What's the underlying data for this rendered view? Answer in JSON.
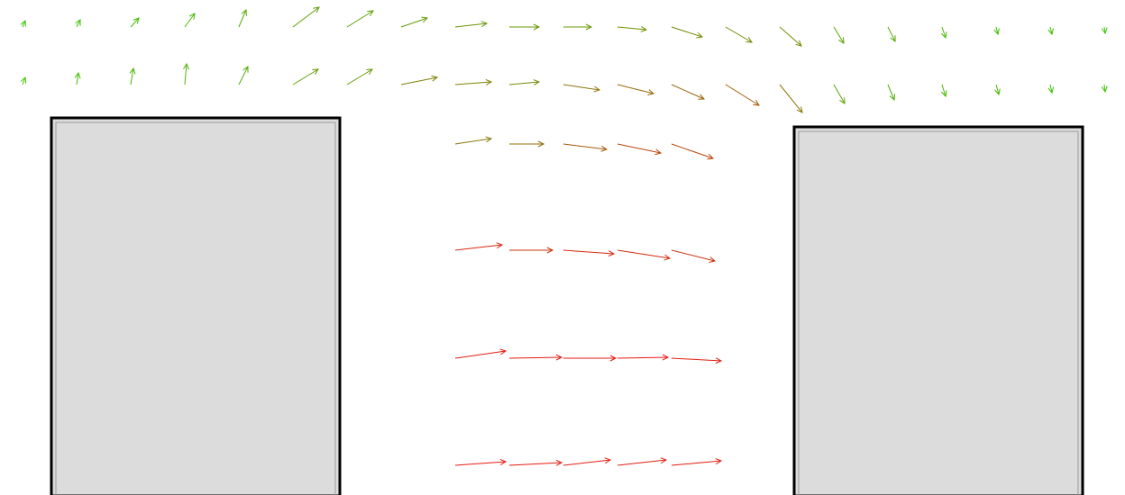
{
  "chart_data": {
    "type": "vector-field",
    "title": "",
    "xlabel": "",
    "ylabel": "",
    "color_scale": {
      "low": "#33cc00",
      "high": "#ee1111"
    },
    "obstacles": [
      {
        "name": "left-block"
      },
      {
        "name": "right-block"
      }
    ],
    "rows": [
      {
        "name": "row-1",
        "x": [
          25,
          85,
          145,
          205,
          265,
          325,
          385,
          445,
          505,
          565,
          625,
          685,
          745,
          805,
          865,
          925,
          985,
          1045,
          1105,
          1165,
          1225
        ],
        "y": 30,
        "u": [
          3,
          4,
          9,
          11,
          8,
          29,
          29,
          29,
          35,
          33,
          31,
          32,
          34,
          29,
          24,
          11,
          8,
          4,
          2,
          2,
          1
        ],
        "v": [
          -7,
          -8,
          -10,
          -15,
          -19,
          -22,
          -18,
          -10,
          -4,
          0,
          0,
          3,
          11,
          17,
          21,
          18,
          16,
          12,
          8,
          8,
          7
        ],
        "m": [
          0.05,
          0.06,
          0.08,
          0.12,
          0.16,
          0.24,
          0.23,
          0.25,
          0.3,
          0.28,
          0.28,
          0.32,
          0.36,
          0.37,
          0.34,
          0.22,
          0.18,
          0.12,
          0.07,
          0.07,
          0.05
        ]
      },
      {
        "name": "row-2",
        "x": [
          25,
          85,
          145,
          205,
          265,
          325,
          385,
          445,
          505,
          565,
          625,
          685,
          745,
          805,
          865,
          925,
          985,
          1045,
          1105,
          1165,
          1225
        ],
        "y": 94,
        "u": [
          3,
          2,
          3,
          2,
          10,
          28,
          28,
          40,
          40,
          33,
          40,
          40,
          36,
          37,
          25,
          12,
          7,
          4,
          3,
          2,
          1
        ],
        "v": [
          -8,
          -13,
          -18,
          -23,
          -20,
          -17,
          -17,
          -8,
          -3,
          -3,
          6,
          10,
          16,
          23,
          31,
          21,
          17,
          13,
          11,
          9,
          8
        ],
        "m": [
          0.05,
          0.08,
          0.12,
          0.15,
          0.17,
          0.27,
          0.27,
          0.4,
          0.4,
          0.37,
          0.48,
          0.52,
          0.55,
          0.6,
          0.47,
          0.22,
          0.15,
          0.11,
          0.09,
          0.07,
          0.06
        ]
      },
      {
        "name": "row-3",
        "x": [
          505,
          565,
          625,
          685,
          745
        ],
        "y": 160,
        "u": [
          40,
          38,
          48,
          48,
          46
        ],
        "v": [
          -6,
          0,
          6,
          10,
          16
        ],
        "m": [
          0.45,
          0.5,
          0.62,
          0.7,
          0.72
        ]
      },
      {
        "name": "row-4",
        "x": [
          505,
          565,
          625,
          685,
          745
        ],
        "y": 278,
        "u": [
          52,
          48,
          56,
          58,
          48
        ],
        "v": [
          -6,
          0,
          4,
          9,
          12
        ],
        "m": [
          0.88,
          0.8,
          0.88,
          0.85,
          0.82
        ]
      },
      {
        "name": "row-5",
        "x": [
          505,
          565,
          625,
          685,
          745
        ],
        "y": 398,
        "u": [
          56,
          58,
          58,
          56,
          55
        ],
        "v": [
          -8,
          -1,
          0,
          -1,
          3
        ],
        "m": [
          0.95,
          0.95,
          0.96,
          0.96,
          0.95
        ]
      },
      {
        "name": "row-6",
        "x": [
          505,
          565,
          625,
          685,
          745
        ],
        "y": 517,
        "u": [
          56,
          58,
          52,
          54,
          55
        ],
        "v": [
          -4,
          -3,
          -6,
          -6,
          -5
        ],
        "m": [
          0.96,
          0.95,
          0.93,
          0.93,
          0.95
        ]
      }
    ]
  }
}
